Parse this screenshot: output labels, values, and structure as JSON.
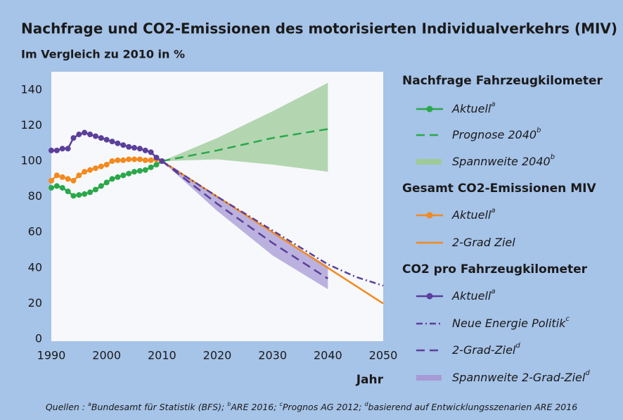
{
  "chart_data": {
    "type": "line",
    "title": "Nachfrage und CO2-Emissionen des motorisierten Individualverkehrs (MIV)",
    "subtitle": "Im Vergleich zu 2010 in %",
    "x_label": "Jahr",
    "xlim": [
      1990,
      2050
    ],
    "xticks": [
      1990,
      2000,
      2010,
      2020,
      2030,
      2040,
      2050
    ],
    "ylim": [
      0,
      150
    ],
    "yticks": [
      0,
      20,
      40,
      60,
      80,
      100,
      120,
      140
    ],
    "grid": false,
    "groups": [
      {
        "name": "Nachfrage Fahrzeugkilometer",
        "series": [
          {
            "name": "Aktuell",
            "note": "a",
            "color": "#2aa84a",
            "style": "solid",
            "markers": true,
            "x": [
              1990,
              1991,
              1992,
              1993,
              1994,
              1995,
              1996,
              1997,
              1998,
              1999,
              2000,
              2001,
              2002,
              2003,
              2004,
              2005,
              2006,
              2007,
              2008,
              2009,
              2010
            ],
            "values": [
              85,
              86,
              85,
              83,
              80.5,
              81,
              81.5,
              82.5,
              84,
              86,
              88,
              90,
              91,
              92,
              93,
              94,
              94.5,
              95,
              96.5,
              98,
              100
            ]
          },
          {
            "name": "Prognose 2040",
            "note": "b",
            "color": "#2aa84a",
            "style": "dashed",
            "markers": false,
            "x": [
              2010,
              2020,
              2030,
              2040
            ],
            "values": [
              100,
              106,
              113,
              118
            ]
          },
          {
            "name": "Spannweite 2040",
            "note": "b",
            "color": "#9ccb98",
            "style": "band",
            "x": [
              2010,
              2020,
              2030,
              2040
            ],
            "lower": [
              100,
              101,
              98,
              94
            ],
            "upper": [
              100,
              113,
              128,
              144
            ]
          }
        ]
      },
      {
        "name": "Gesamt CO2-Emissionen MIV",
        "series": [
          {
            "name": "Aktuell",
            "note": "a",
            "color": "#f28a1e",
            "style": "solid",
            "markers": true,
            "x": [
              1990,
              1991,
              1992,
              1993,
              1994,
              1995,
              1996,
              1997,
              1998,
              1999,
              2000,
              2001,
              2002,
              2003,
              2004,
              2005,
              2006,
              2007,
              2008,
              2009,
              2010
            ],
            "values": [
              89,
              92,
              91,
              90,
              89,
              92,
              94,
              95,
              96,
              97,
              98,
              100,
              100.5,
              100.5,
              101,
              101,
              101,
              100.5,
              100.5,
              101,
              100
            ]
          },
          {
            "name": "2-Grad Ziel",
            "color": "#f28a1e",
            "style": "solid",
            "markers": false,
            "x": [
              2010,
              2050
            ],
            "values": [
              100,
              20
            ]
          }
        ]
      },
      {
        "name": "CO2 pro Fahrzeugkilometer",
        "series": [
          {
            "name": "Aktuell",
            "note": "a",
            "color": "#5b3f9b",
            "style": "solid",
            "markers": true,
            "x": [
              1990,
              1991,
              1992,
              1993,
              1994,
              1995,
              1996,
              1997,
              1998,
              1999,
              2000,
              2001,
              2002,
              2003,
              2004,
              2005,
              2006,
              2007,
              2008,
              2009,
              2010
            ],
            "values": [
              106,
              106,
              107,
              107,
              113,
              115,
              116,
              115,
              114,
              113,
              112,
              111,
              110,
              109,
              108,
              107.5,
              107,
              106,
              105,
              102,
              100
            ]
          },
          {
            "name": "Neue Energie Politik",
            "note": "c",
            "color": "#5b3f9b",
            "style": "dashdot",
            "markers": false,
            "x": [
              2010,
              2020,
              2030,
              2040,
              2045,
              2050
            ],
            "values": [
              100,
              80,
              61,
              42,
              35,
              30
            ]
          },
          {
            "name": "2-Grad-Ziel",
            "note": "d",
            "color": "#5b3f9b",
            "style": "dashed",
            "markers": false,
            "x": [
              2010,
              2020,
              2030,
              2040
            ],
            "values": [
              100,
              76,
              54,
              34
            ]
          },
          {
            "name": "Spannweite 2-Grad-Ziel",
            "note": "d",
            "color": "#a79ad6",
            "style": "band",
            "x": [
              2010,
              2020,
              2030,
              2040
            ],
            "lower": [
              100,
              72,
              47,
              28
            ],
            "upper": [
              100,
              80,
              60,
              41
            ]
          }
        ]
      }
    ],
    "source": {
      "prefix": "Quellen : ",
      "items": [
        {
          "note": "a",
          "text": "Bundesamt für Statistik (BFS);"
        },
        {
          "note": "b",
          "text": "ARE 2016;"
        },
        {
          "note": "c",
          "text": "Prognos AG 2012;"
        },
        {
          "note": "d",
          "text": "basierend auf Entwicklungsszenarien ARE 2016"
        }
      ]
    }
  }
}
